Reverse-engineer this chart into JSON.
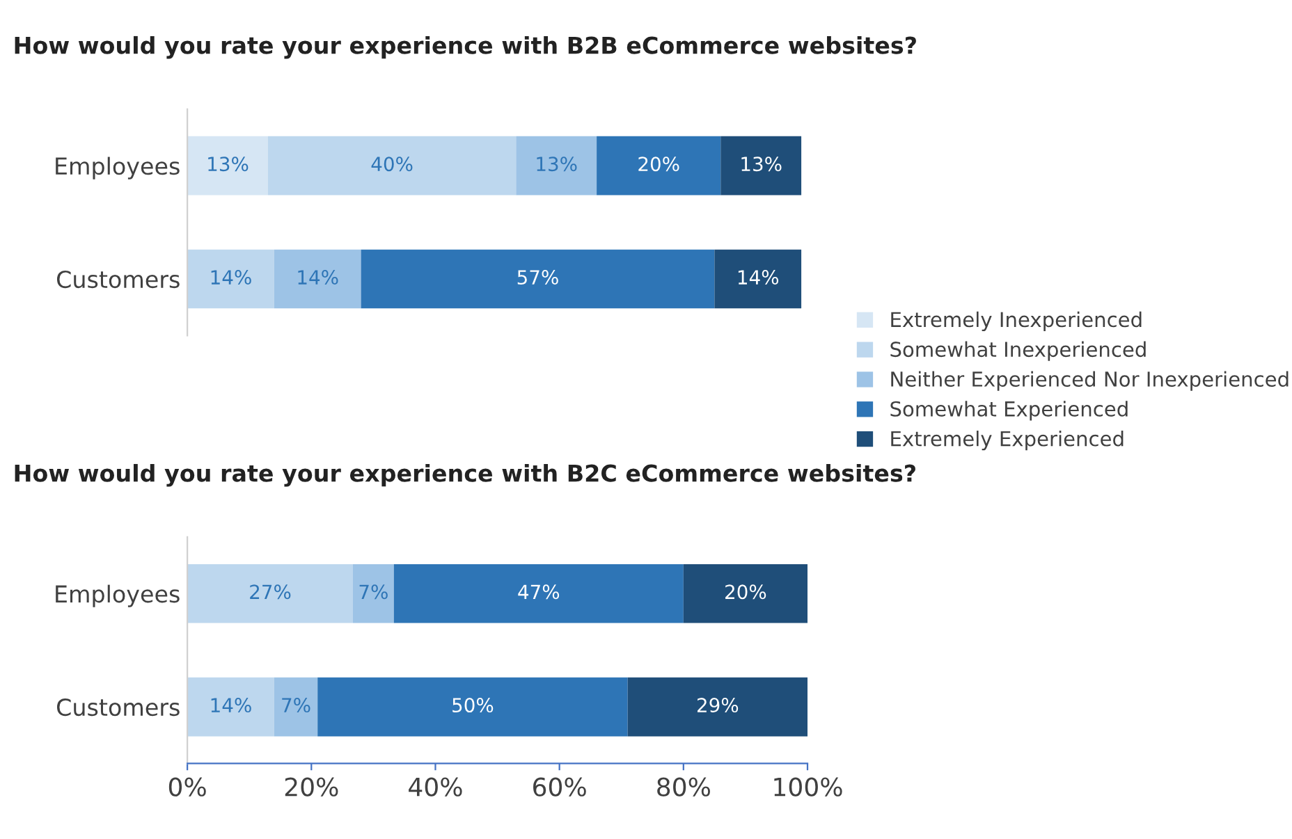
{
  "chart_data": [
    {
      "type": "bar",
      "orientation": "horizontal",
      "stacked": true,
      "title": "How would you rate your experience with B2B eCommerce websites?",
      "categories": [
        "Employees",
        "Customers"
      ],
      "xlim": [
        0,
        100
      ],
      "tick_labels": "y",
      "legend": "right",
      "grid": false,
      "series": [
        {
          "name": "Extremely Inexperienced",
          "color": "#d6e6f4",
          "values": [
            13,
            null
          ],
          "value_labels": [
            "13%",
            null
          ]
        },
        {
          "name": "Somewhat Inexperienced",
          "color": "#bdd7ee",
          "values": [
            40,
            14
          ],
          "value_labels": [
            "40%",
            "14%"
          ]
        },
        {
          "name": "Neither Experienced Nor Inexperienced",
          "color": "#9dc3e6",
          "values": [
            13,
            14
          ],
          "value_labels": [
            "13%",
            "14%"
          ]
        },
        {
          "name": "Somewhat Experienced",
          "color": "#2e75b6",
          "values": [
            20,
            57
          ],
          "value_labels": [
            "20%",
            "57%"
          ]
        },
        {
          "name": "Extremely Experienced",
          "color": "#1f4e79",
          "values": [
            13,
            14
          ],
          "value_labels": [
            "13%",
            "14%"
          ]
        }
      ]
    },
    {
      "type": "bar",
      "orientation": "horizontal",
      "stacked": true,
      "title": "How would you rate your experience with B2C eCommerce websites?",
      "categories": [
        "Employees",
        "Customers"
      ],
      "xlim": [
        0,
        100
      ],
      "xticks": [
        {
          "value": 0,
          "label": "0%"
        },
        {
          "value": 20,
          "label": "20%"
        },
        {
          "value": 40,
          "label": "40%"
        },
        {
          "value": 60,
          "label": "60%"
        },
        {
          "value": 80,
          "label": "80%"
        },
        {
          "value": 100,
          "label": "100%"
        }
      ],
      "grid": false,
      "series": [
        {
          "color": "#d6e6f4",
          "values": [
            null,
            null
          ]
        },
        {
          "color": "#bdd7ee",
          "values": [
            26.7,
            14
          ],
          "value_labels": [
            "27%",
            "14%"
          ]
        },
        {
          "color": "#9dc3e6",
          "values": [
            6.6,
            7
          ],
          "value_labels": [
            "7%",
            "7%"
          ]
        },
        {
          "color": "#2e75b6",
          "values": [
            46.7,
            50
          ],
          "value_labels": [
            "47%",
            "50%"
          ]
        },
        {
          "color": "#1f4e79",
          "values": [
            20,
            29
          ],
          "value_labels": [
            "20%",
            "29%"
          ]
        }
      ]
    }
  ]
}
